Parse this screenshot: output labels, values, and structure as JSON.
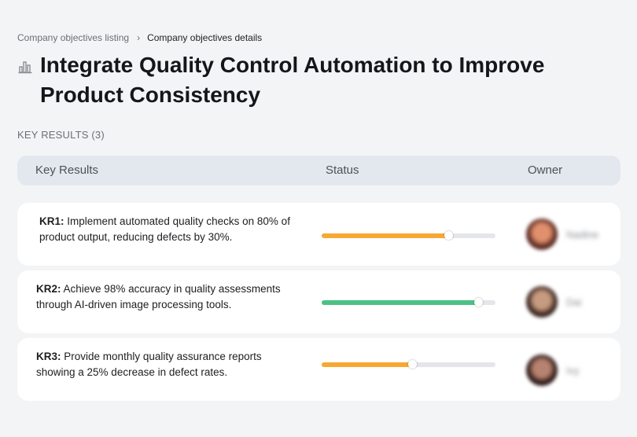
{
  "breadcrumb": {
    "parent": "Company objectives listing",
    "separator": "›",
    "current": "Company objectives details"
  },
  "objective": {
    "icon": "bar-chart-icon",
    "title": "Integrate Quality Control Automation to Improve Product Consistency"
  },
  "key_results_section": {
    "label": "KEY RESULTS (3)"
  },
  "table_header": {
    "key_results": "Key Results",
    "status": "Status",
    "owner": "Owner"
  },
  "key_results": [
    {
      "id": "KR1:",
      "text": "Implement automated quality checks on 80% of product output, reducing defects by 30%.",
      "progress_percent": 73,
      "progress_color": "#f7a833",
      "owner_name": "Nadine",
      "avatar_colors": [
        "#5a2a22",
        "#e0906d"
      ]
    },
    {
      "id": "KR2:",
      "text": "Achieve 98% accuracy in quality assessments through AI-driven image processing tools.",
      "progress_percent": 90,
      "progress_color": "#4dc085",
      "owner_name": "Dai",
      "avatar_colors": [
        "#3b2520",
        "#c69b80"
      ]
    },
    {
      "id": "KR3:",
      "text": "Provide monthly quality assurance reports showing a 25% decrease in defect rates.",
      "progress_percent": 52,
      "progress_color": "#f7a833",
      "owner_name": "Ivy",
      "avatar_colors": [
        "#2e1a18",
        "#b78270"
      ]
    }
  ]
}
